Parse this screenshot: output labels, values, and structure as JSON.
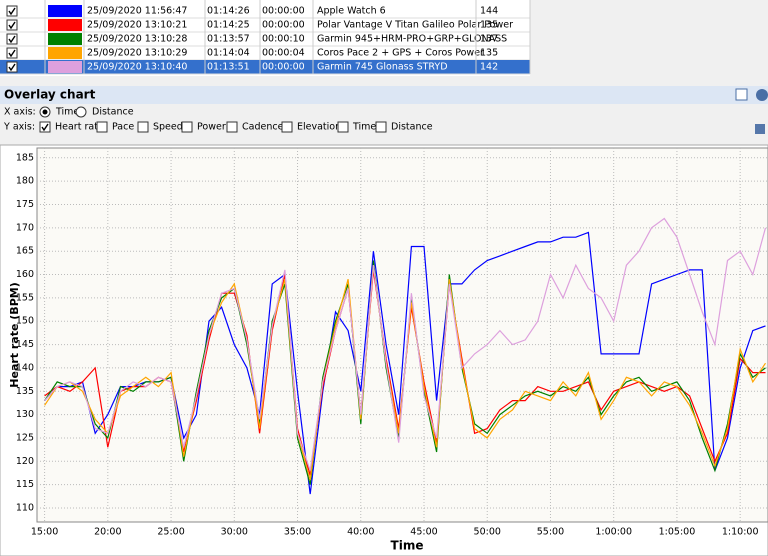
{
  "table": {
    "selected": 4,
    "rows": [
      {
        "datetime": "25/09/2020 11:56:47",
        "duration": "01:14:26",
        "offset": "00:00:00",
        "name": "Apple Watch 6",
        "value": 144
      },
      {
        "datetime": "25/09/2020 13:10:21",
        "duration": "01:14:25",
        "offset": "00:00:00",
        "name": "Polar Vantage V Titan Galileo Polar Power",
        "value": 135
      },
      {
        "datetime": "25/09/2020 13:10:28",
        "duration": "01:13:57",
        "offset": "00:00:10",
        "name": "Garmin 945+HRM-PRO+GRP+GLONASS",
        "value": 137
      },
      {
        "datetime": "25/09/2020 13:10:29",
        "duration": "01:14:04",
        "offset": "00:00:04",
        "name": "Coros Pace 2 + GPS + Coros Power",
        "value": 135
      },
      {
        "datetime": "25/09/2020 13:10:40",
        "duration": "01:13:51",
        "offset": "00:00:00",
        "name": "Garmin 745 Glonass STRYD",
        "value": 142
      }
    ]
  },
  "panel": {
    "title": "Overlay chart",
    "x_axis_label": "X axis:",
    "x_options": [
      "Time",
      "Distance"
    ],
    "y_axis_label": "Y axis:",
    "y_options": [
      "Heart rate",
      "Pace",
      "Speed",
      "Power",
      "Cadence",
      "Elevation",
      "Time",
      "Distance"
    ]
  },
  "chart_data": {
    "type": "line",
    "x_label": "Time",
    "y_label": "Heart rate (BPM)",
    "grid": true,
    "xlim": [
      14.4,
      72.2
    ],
    "ylim": [
      107,
      187.1
    ],
    "xticks": [
      {
        "value": 15,
        "label": "15:00"
      },
      {
        "value": 20,
        "label": "20:00"
      },
      {
        "value": 25,
        "label": "25:00"
      },
      {
        "value": 30,
        "label": "30:00"
      },
      {
        "value": 35,
        "label": "35:00"
      },
      {
        "value": 40,
        "label": "40:00"
      },
      {
        "value": 45,
        "label": "45:00"
      },
      {
        "value": 50,
        "label": "50:00"
      },
      {
        "value": 55,
        "label": "55:00"
      },
      {
        "value": 60,
        "label": "1:00:00"
      },
      {
        "value": 65,
        "label": "1:05:00"
      },
      {
        "value": 70,
        "label": "1:10:00"
      }
    ],
    "yticks": [
      110,
      115,
      120,
      125,
      130,
      135,
      140,
      145,
      150,
      155,
      160,
      165,
      170,
      175,
      180,
      185
    ],
    "x": [
      15,
      16,
      17,
      18,
      19,
      20,
      21,
      22,
      23,
      24,
      25,
      26,
      27,
      28,
      29,
      30,
      31,
      32,
      33,
      34,
      35,
      36,
      37,
      38,
      39,
      40,
      41,
      42,
      43,
      44,
      45,
      46,
      47,
      48,
      49,
      50,
      51,
      52,
      53,
      54,
      55,
      56,
      57,
      58,
      59,
      60,
      61,
      62,
      63,
      64,
      65,
      66,
      67,
      68,
      69,
      70,
      71,
      72
    ],
    "series": [
      {
        "color": "#0000ff",
        "values": [
          133,
          136,
          136,
          137,
          126,
          130,
          136,
          136,
          137,
          137,
          138,
          125,
          130,
          150,
          153,
          145,
          140,
          130,
          158,
          160,
          135,
          113,
          135,
          152,
          148,
          135,
          165,
          145,
          130,
          166,
          166,
          133,
          158,
          158,
          161,
          163,
          164,
          165,
          166,
          167,
          167,
          168,
          168,
          169,
          143,
          143,
          143,
          143,
          158,
          159,
          160,
          161,
          161,
          118,
          125,
          140,
          148,
          149
        ]
      },
      {
        "color": "#ff0000",
        "values": [
          134,
          136,
          135,
          137,
          140,
          123,
          135,
          136,
          136,
          138,
          137,
          122,
          133,
          146,
          156,
          156,
          147,
          126,
          148,
          160,
          127,
          117,
          136,
          148,
          157,
          130,
          161,
          142,
          127,
          153,
          137,
          124,
          158,
          142,
          126,
          127,
          131,
          133,
          133,
          136,
          135,
          135,
          136,
          137,
          131,
          135,
          136,
          137,
          136,
          135,
          136,
          134,
          127,
          120,
          126,
          142,
          139,
          139
        ]
      },
      {
        "color": "#008000",
        "values": [
          133,
          137,
          136,
          136,
          128,
          125,
          136,
          135,
          137,
          137,
          138,
          120,
          135,
          148,
          155,
          157,
          145,
          128,
          150,
          158,
          125,
          115,
          138,
          150,
          158,
          128,
          163,
          140,
          125,
          155,
          135,
          122,
          160,
          140,
          128,
          126,
          130,
          132,
          134,
          135,
          134,
          136,
          135,
          138,
          130,
          134,
          137,
          138,
          135,
          136,
          137,
          133,
          125,
          118,
          128,
          143,
          138,
          140
        ]
      },
      {
        "color": "#ffa500",
        "values": [
          132,
          136,
          137,
          135,
          129,
          126,
          134,
          136,
          138,
          136,
          139,
          121,
          134,
          147,
          154,
          158,
          146,
          127,
          149,
          159,
          126,
          116,
          137,
          149,
          159,
          129,
          162,
          141,
          126,
          154,
          136,
          123,
          159,
          141,
          127,
          125,
          129,
          131,
          135,
          134,
          133,
          137,
          134,
          139,
          129,
          133,
          138,
          137,
          134,
          137,
          136,
          132,
          126,
          119,
          127,
          144,
          137,
          141
        ]
      },
      {
        "color": "#dda0dd",
        "values": [
          133,
          136,
          137,
          136,
          127,
          126,
          135,
          137,
          136,
          138,
          137,
          123,
          134,
          147,
          156,
          157,
          146,
          129,
          149,
          161,
          126,
          118,
          137,
          148,
          157,
          130,
          162,
          141,
          124,
          156,
          134,
          125,
          158,
          140,
          143,
          145,
          148,
          145,
          146,
          150,
          160,
          155,
          162,
          157,
          155,
          150,
          162,
          165,
          170,
          172,
          168,
          160,
          152,
          145,
          163,
          165,
          160,
          170
        ]
      }
    ]
  }
}
